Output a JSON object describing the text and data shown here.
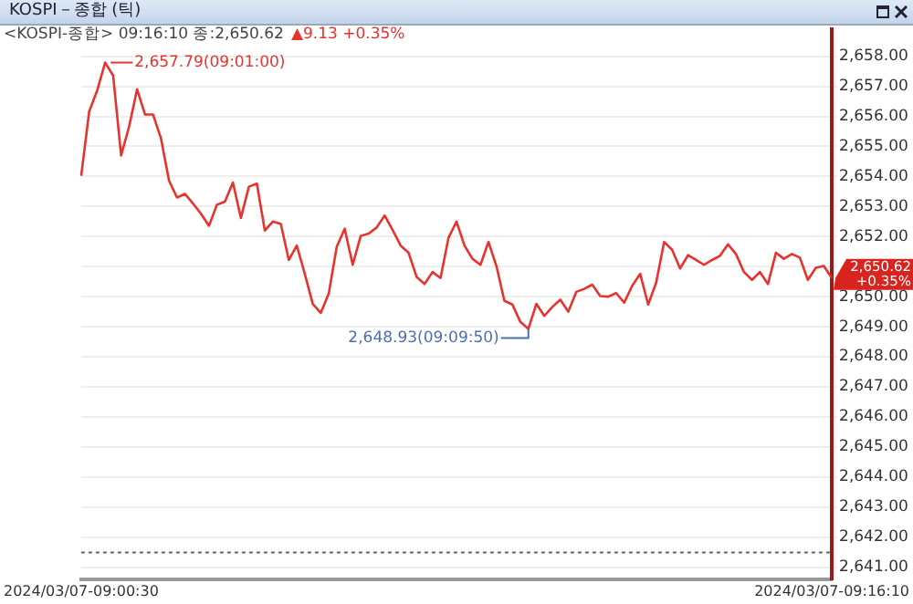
{
  "chart_data": {
    "type": "line",
    "title": "KOSPI－종합 (틱)",
    "subtitle": "<KOSPI-종합> 09:16:10 종:2,650.62",
    "categories": [
      "2024/03/07-09:00:30",
      null,
      null,
      null,
      null,
      null,
      null,
      null,
      null,
      null,
      null,
      null,
      null,
      null,
      null,
      null,
      null,
      null,
      null,
      null,
      null,
      null,
      null,
      null,
      null,
      null,
      null,
      null,
      null,
      null,
      null,
      null,
      null,
      null,
      null,
      null,
      null,
      null,
      null,
      null,
      null,
      null,
      null,
      null,
      null,
      null,
      null,
      null,
      null,
      null,
      null,
      null,
      null,
      null,
      null,
      null,
      null,
      null,
      null,
      null,
      null,
      null,
      null,
      null,
      null,
      null,
      null,
      null,
      null,
      null,
      null,
      null,
      null,
      null,
      null,
      null,
      null,
      null,
      null,
      null,
      null,
      null,
      null,
      null,
      null,
      null,
      null,
      null,
      null,
      null,
      null,
      null,
      null,
      null,
      "2024/03/07-09:16:10"
    ],
    "series": [
      {
        "color": "#e8322c",
        "values": [
          2654.02,
          2656.16,
          2656.86,
          2657.79,
          2657.36,
          2654.7,
          2655.66,
          2656.9,
          2656.06,
          2656.06,
          2655.26,
          2653.86,
          2653.3,
          2653.42,
          2653.1,
          2652.76,
          2652.36,
          2653.06,
          2653.16,
          2653.8,
          2652.62,
          2653.66,
          2653.76,
          2652.2,
          2652.5,
          2652.42,
          2651.22,
          2651.7,
          2650.76,
          2649.76,
          2649.46,
          2650.1,
          2651.66,
          2652.26,
          2651.06,
          2652.02,
          2652.1,
          2652.3,
          2652.7,
          2652.22,
          2651.7,
          2651.46,
          2650.66,
          2650.42,
          2650.82,
          2650.62,
          2651.96,
          2652.5,
          2651.7,
          2651.26,
          2651.06,
          2651.82,
          2651.02,
          2649.86,
          2649.74,
          2649.16,
          2648.93,
          2649.76,
          2649.36,
          2649.66,
          2649.9,
          2649.5,
          2650.16,
          2650.26,
          2650.4,
          2650.02,
          2650.0,
          2650.12,
          2649.8,
          2650.36,
          2650.76,
          2649.74,
          2650.46,
          2651.82,
          2651.56,
          2650.94,
          2651.38,
          2651.22,
          2651.06,
          2651.22,
          2651.36,
          2651.74,
          2651.42,
          2650.82,
          2650.56,
          2650.82,
          2650.42,
          2651.46,
          2651.26,
          2651.42,
          2651.3,
          2650.56,
          2650.96,
          2651.02,
          2650.62
        ]
      }
    ],
    "ylim": [
      2640.6,
      2658.9
    ],
    "yticks": [
      {
        "value": 2641,
        "label": "2,641.00"
      },
      {
        "value": 2642,
        "label": "2,642.00"
      },
      {
        "value": 2643,
        "label": "2,643.00"
      },
      {
        "value": 2644,
        "label": "2,644.00"
      },
      {
        "value": 2645,
        "label": "2,645.00"
      },
      {
        "value": 2646,
        "label": "2,646.00"
      },
      {
        "value": 2647,
        "label": "2,647.00"
      },
      {
        "value": 2648,
        "label": "2,648.00"
      },
      {
        "value": 2649,
        "label": "2,649.00"
      },
      {
        "value": 2650,
        "label": "2,650.00"
      },
      {
        "value": 2651,
        "label": null
      },
      {
        "value": 2652,
        "label": "2,652.00"
      },
      {
        "value": 2653,
        "label": "2,653.00"
      },
      {
        "value": 2654,
        "label": "2,654.00"
      },
      {
        "value": 2655,
        "label": "2,655.00"
      },
      {
        "value": 2656,
        "label": "2,656.00"
      },
      {
        "value": 2657,
        "label": "2,657.00"
      },
      {
        "value": 2658,
        "label": "2,658.00"
      }
    ],
    "ref_lines": [
      {
        "axis": "y",
        "value": 2641.49,
        "color": "#666666",
        "line_style": "dotted"
      }
    ],
    "annotations": [
      "▲9.13 +0.35%",
      "2,657.79(09:01:00)",
      "2,648.93(09:09:50)",
      "2,650.62",
      "+0.35%"
    ],
    "grid": "y",
    "legend": false,
    "marker": "none",
    "line_style": "solid"
  }
}
